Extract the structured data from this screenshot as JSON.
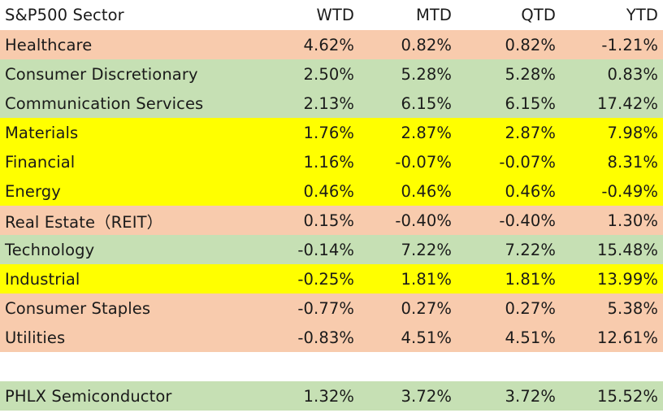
{
  "header": {
    "sector": "S&P500 Sector",
    "wtd": "WTD",
    "mtd": "MTD",
    "qtd": "QTD",
    "ytd": "YTD"
  },
  "rows": [
    {
      "name": "Healthcare",
      "wtd": "4.62%",
      "mtd": "0.82%",
      "qtd": "0.82%",
      "ytd": "-1.21%",
      "color": "#f8cbad"
    },
    {
      "name": "Consumer Discretionary",
      "wtd": "2.50%",
      "mtd": "5.28%",
      "qtd": "5.28%",
      "ytd": "0.83%",
      "color": "#c6e0b4"
    },
    {
      "name": "Communication Services",
      "wtd": "2.13%",
      "mtd": "6.15%",
      "qtd": "6.15%",
      "ytd": "17.42%",
      "color": "#c6e0b4"
    },
    {
      "name": "Materials",
      "wtd": "1.76%",
      "mtd": "2.87%",
      "qtd": "2.87%",
      "ytd": "7.98%",
      "color": "#ffff00"
    },
    {
      "name": "Financial",
      "wtd": "1.16%",
      "mtd": "-0.07%",
      "qtd": "-0.07%",
      "ytd": "8.31%",
      "color": "#ffff00"
    },
    {
      "name": "Energy",
      "wtd": "0.46%",
      "mtd": "0.46%",
      "qtd": "0.46%",
      "ytd": "-0.49%",
      "color": "#ffff00"
    },
    {
      "name": "Real Estate（REIT）",
      "wtd": "0.15%",
      "mtd": "-0.40%",
      "qtd": "-0.40%",
      "ytd": "1.30%",
      "color": "#f8cbad"
    },
    {
      "name": "Technology",
      "wtd": "-0.14%",
      "mtd": "7.22%",
      "qtd": "7.22%",
      "ytd": "15.48%",
      "color": "#c6e0b4"
    },
    {
      "name": "Industrial",
      "wtd": "-0.25%",
      "mtd": "1.81%",
      "qtd": "1.81%",
      "ytd": "13.99%",
      "color": "#ffff00"
    },
    {
      "name": "Consumer Staples",
      "wtd": "-0.77%",
      "mtd": "0.27%",
      "qtd": "0.27%",
      "ytd": "5.38%",
      "color": "#f8cbad"
    },
    {
      "name": "Utilities",
      "wtd": "-0.83%",
      "mtd": "4.51%",
      "qtd": "4.51%",
      "ytd": "12.61%",
      "color": "#f8cbad"
    }
  ],
  "semiconductor": {
    "name": "PHLX Semiconductor",
    "wtd": "1.32%",
    "mtd": "3.72%",
    "qtd": "3.72%",
    "ytd": "15.52%",
    "color": "#c6e0b4"
  }
}
